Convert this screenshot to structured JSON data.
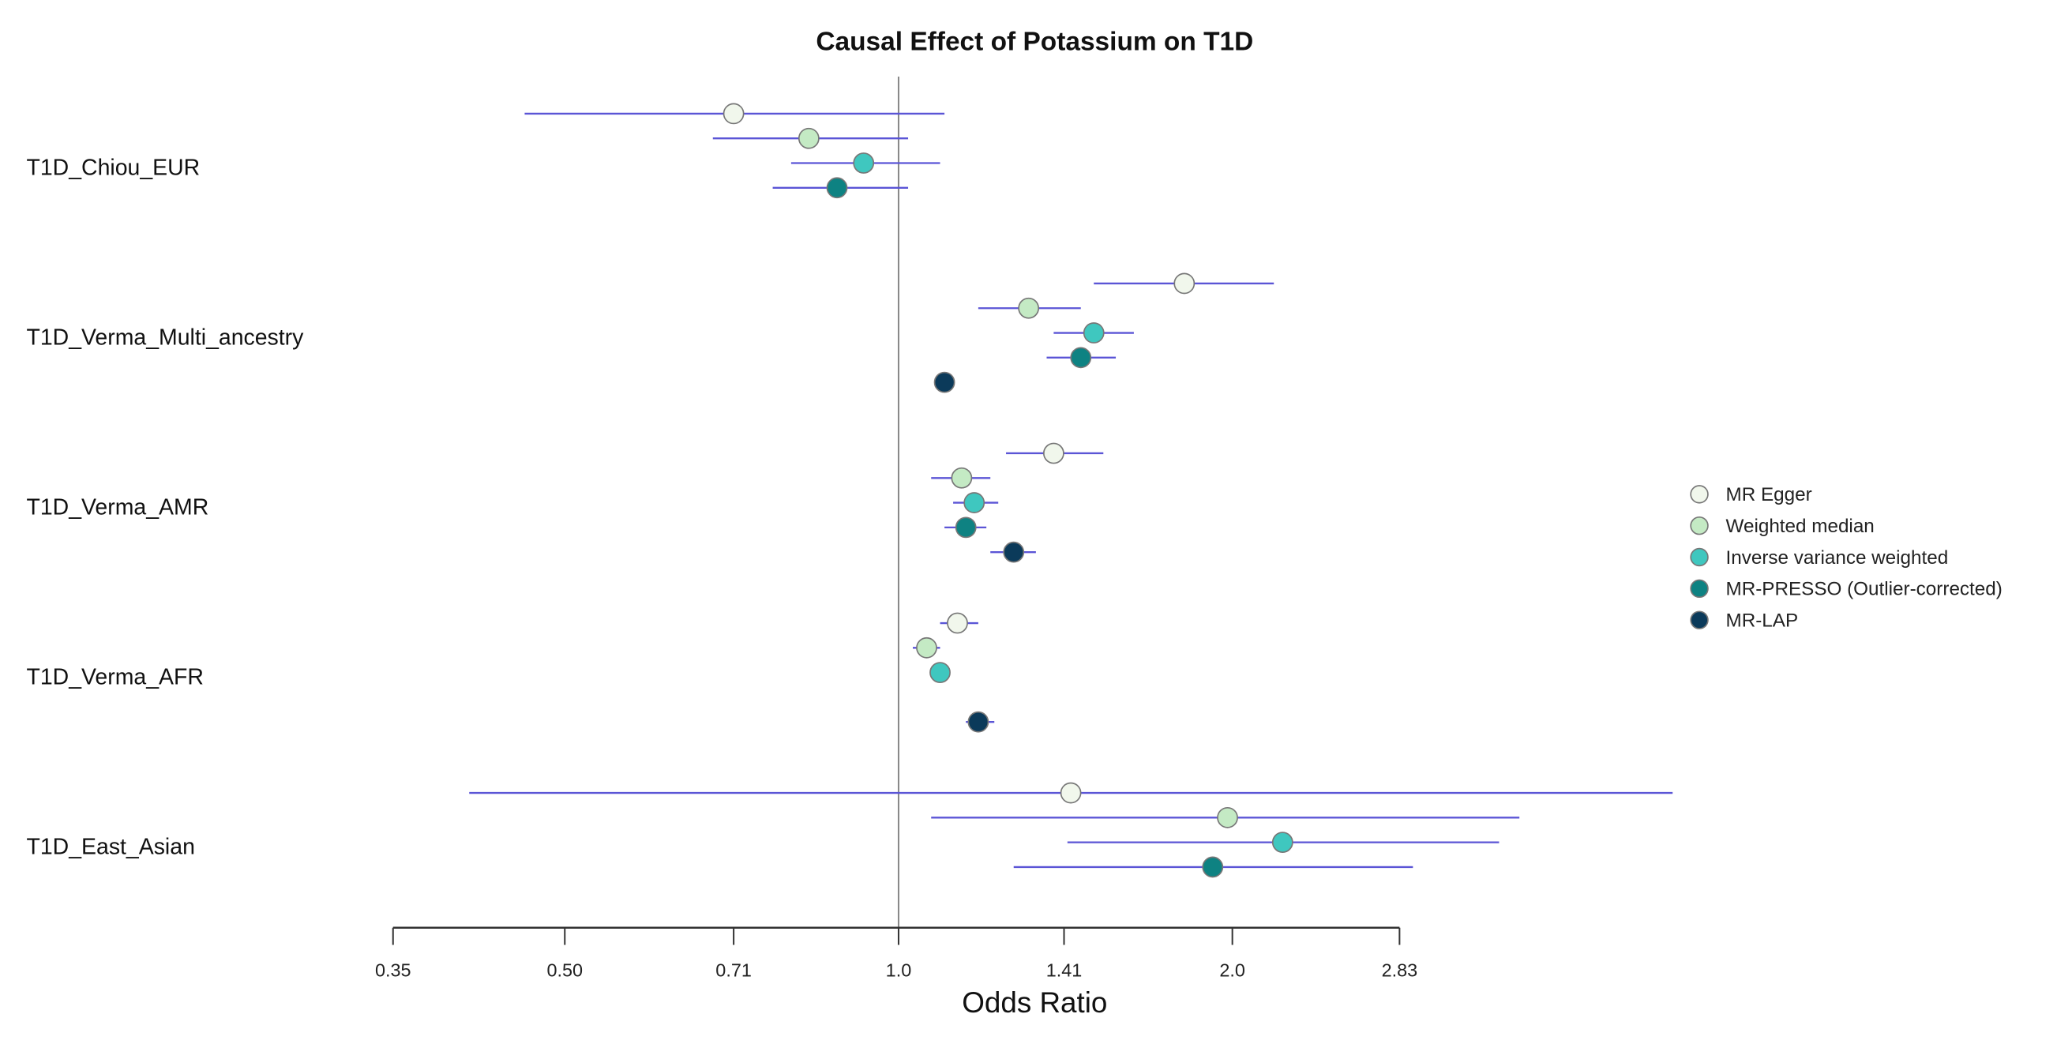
{
  "chart_data": {
    "type": "forest",
    "title": "Causal Effect of Potassium on T1D",
    "xlabel": "Odds Ratio",
    "xscale": "log2",
    "xlim": [
      0.35,
      2.83
    ],
    "xticks": [
      0.35,
      0.5,
      0.71,
      1.0,
      1.41,
      2.0,
      2.83
    ],
    "xtick_labels": [
      "0.35",
      "0.50",
      "0.71",
      "1.0",
      "1.41",
      "2.0",
      "2.83"
    ],
    "reference_line": 1.0,
    "legend_position": "right",
    "line_color": "#5b55d6",
    "methods": [
      {
        "name": "MR Egger",
        "color": "#f1f7ec"
      },
      {
        "name": "Weighted median",
        "color": "#c4eac4"
      },
      {
        "name": "Inverse variance weighted",
        "color": "#3fc7bf"
      },
      {
        "name": "MR-PRESSO (Outlier-corrected)",
        "color": "#0e8282"
      },
      {
        "name": "MR-LAP",
        "color": "#0b3a5a"
      }
    ],
    "studies": [
      {
        "label": "T1D_Chiou_EUR",
        "estimates": [
          {
            "or": 0.71,
            "lo": 0.46,
            "hi": 1.1
          },
          {
            "or": 0.83,
            "lo": 0.68,
            "hi": 1.02
          },
          {
            "or": 0.93,
            "lo": 0.8,
            "hi": 1.09
          },
          {
            "or": 0.88,
            "lo": 0.77,
            "hi": 1.02
          },
          null
        ]
      },
      {
        "label": "T1D_Verma_Multi_ancestry",
        "estimates": [
          {
            "or": 1.81,
            "lo": 1.5,
            "hi": 2.18
          },
          {
            "or": 1.31,
            "lo": 1.18,
            "hi": 1.46
          },
          {
            "or": 1.5,
            "lo": 1.38,
            "hi": 1.63
          },
          {
            "or": 1.46,
            "lo": 1.36,
            "hi": 1.57
          },
          {
            "or": 1.1,
            "lo": null,
            "hi": null
          }
        ]
      },
      {
        "label": "T1D_Verma_AMR",
        "estimates": [
          {
            "or": 1.38,
            "lo": 1.25,
            "hi": 1.53
          },
          {
            "or": 1.14,
            "lo": 1.07,
            "hi": 1.21
          },
          {
            "or": 1.17,
            "lo": 1.12,
            "hi": 1.23
          },
          {
            "or": 1.15,
            "lo": 1.1,
            "hi": 1.2
          },
          {
            "or": 1.27,
            "lo": 1.21,
            "hi": 1.33
          }
        ]
      },
      {
        "label": "T1D_Verma_AFR",
        "estimates": [
          {
            "or": 1.13,
            "lo": 1.09,
            "hi": 1.18
          },
          {
            "or": 1.06,
            "lo": 1.03,
            "hi": 1.09
          },
          {
            "or": 1.09,
            "lo": null,
            "hi": null
          },
          null,
          {
            "or": 1.18,
            "lo": 1.15,
            "hi": 1.22
          }
        ]
      },
      {
        "label": "T1D_East_Asian",
        "estimates": [
          {
            "or": 1.43,
            "lo": 0.41,
            "hi": 4.99
          },
          {
            "or": 1.98,
            "lo": 1.07,
            "hi": 3.63
          },
          {
            "or": 2.22,
            "lo": 1.42,
            "hi": 3.48
          },
          {
            "or": 1.92,
            "lo": 1.27,
            "hi": 2.91
          },
          null
        ]
      }
    ]
  }
}
